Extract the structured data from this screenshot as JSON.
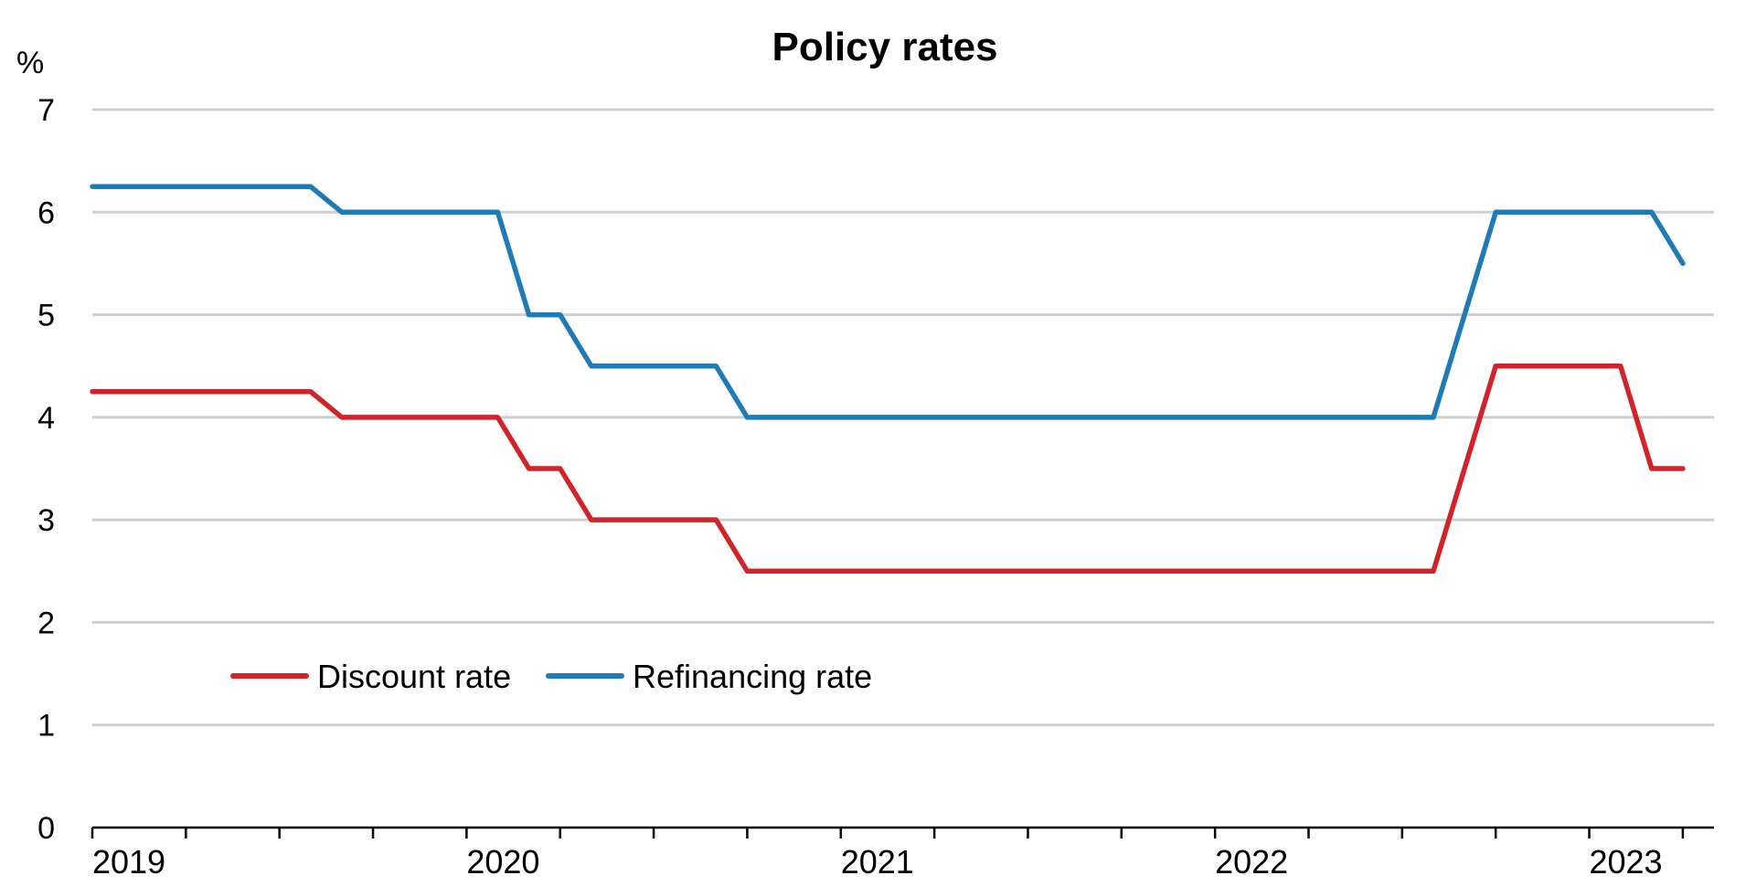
{
  "chart_data": {
    "type": "line",
    "title": "Policy rates",
    "ylabel": "%",
    "ylim": [
      0,
      7
    ],
    "yticks": [
      "0",
      "1",
      "2",
      "3",
      "4",
      "5",
      "6",
      "7"
    ],
    "xlim": [
      "2019-01",
      "2023-05"
    ],
    "xticks": [
      {
        "label": "2019",
        "date": "2019-01"
      },
      {
        "label": "2020",
        "date": "2020-01"
      },
      {
        "label": "2021",
        "date": "2021-01"
      },
      {
        "label": "2022",
        "date": "2022-01"
      },
      {
        "label": "2023",
        "date": "2023-01"
      }
    ],
    "grid": true,
    "legend": "bottom-left",
    "series": [
      {
        "name": "Discount rate",
        "color": "#d2232a",
        "points": [
          [
            "2019-01",
            4.25
          ],
          [
            "2019-08",
            4.25
          ],
          [
            "2019-09",
            4.0
          ],
          [
            "2020-02",
            4.0
          ],
          [
            "2020-03",
            3.5
          ],
          [
            "2020-04",
            3.5
          ],
          [
            "2020-05",
            3.0
          ],
          [
            "2020-09",
            3.0
          ],
          [
            "2020-10",
            2.5
          ],
          [
            "2022-08",
            2.5
          ],
          [
            "2022-10",
            4.5
          ],
          [
            "2023-02",
            4.5
          ],
          [
            "2023-03",
            3.5
          ],
          [
            "2023-04",
            3.5
          ]
        ]
      },
      {
        "name": "Refinancing rate",
        "color": "#1f7ab8",
        "points": [
          [
            "2019-01",
            6.25
          ],
          [
            "2019-08",
            6.25
          ],
          [
            "2019-09",
            6.0
          ],
          [
            "2020-02",
            6.0
          ],
          [
            "2020-03",
            5.0
          ],
          [
            "2020-04",
            5.0
          ],
          [
            "2020-05",
            4.5
          ],
          [
            "2020-09",
            4.5
          ],
          [
            "2020-10",
            4.0
          ],
          [
            "2022-08",
            4.0
          ],
          [
            "2022-10",
            6.0
          ],
          [
            "2023-03",
            6.0
          ],
          [
            "2023-04",
            5.5
          ]
        ]
      }
    ]
  }
}
